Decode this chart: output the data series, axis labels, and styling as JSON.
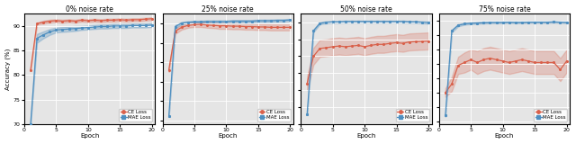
{
  "panels": [
    {
      "title": "0% noise rate",
      "ylim": [
        70,
        92.5
      ],
      "yticks": [
        70,
        75,
        80,
        85,
        90
      ],
      "ce_mean": [
        81,
        90.5,
        90.8,
        91.0,
        91.1,
        91.0,
        91.1,
        91.0,
        91.2,
        91.1,
        91.2,
        91.1,
        91.2,
        91.2,
        91.3,
        91.2,
        91.3,
        91.3,
        91.4,
        91.5
      ],
      "ce_std": [
        0.2,
        0.2,
        0.3,
        0.3,
        0.3,
        0.3,
        0.3,
        0.3,
        0.3,
        0.3,
        0.3,
        0.3,
        0.3,
        0.3,
        0.3,
        0.3,
        0.3,
        0.3,
        0.3,
        0.3
      ],
      "mae_mean": [
        70,
        87.5,
        88.2,
        88.8,
        89.2,
        89.3,
        89.4,
        89.5,
        89.6,
        89.7,
        89.8,
        89.9,
        89.9,
        90.0,
        90.0,
        90.0,
        90.1,
        90.1,
        90.1,
        90.2
      ],
      "mae_std": [
        0.3,
        0.9,
        0.7,
        0.6,
        0.5,
        0.5,
        0.5,
        0.5,
        0.4,
        0.4,
        0.4,
        0.4,
        0.4,
        0.4,
        0.4,
        0.4,
        0.4,
        0.4,
        0.4,
        0.4
      ]
    },
    {
      "title": "25% noise rate",
      "ylim": [
        64,
        92.5
      ],
      "yticks": [
        65,
        70,
        75,
        80,
        85,
        90
      ],
      "ce_mean": [
        78,
        88.0,
        89.0,
        89.5,
        89.7,
        89.8,
        89.6,
        89.5,
        89.4,
        89.4,
        89.3,
        89.3,
        89.2,
        89.2,
        89.1,
        89.1,
        89.0,
        89.0,
        89.0,
        89.0
      ],
      "ce_std": [
        0.5,
        0.7,
        0.6,
        0.6,
        0.6,
        0.7,
        0.7,
        0.7,
        0.8,
        0.8,
        0.8,
        0.8,
        0.8,
        0.8,
        0.8,
        0.8,
        0.8,
        0.8,
        0.8,
        0.8
      ],
      "mae_mean": [
        66,
        89.2,
        90.1,
        90.3,
        90.4,
        90.4,
        90.5,
        90.5,
        90.5,
        90.5,
        90.6,
        90.6,
        90.6,
        90.6,
        90.7,
        90.7,
        90.7,
        90.8,
        90.8,
        90.9
      ],
      "mae_std": [
        0.2,
        0.4,
        0.3,
        0.3,
        0.3,
        0.3,
        0.3,
        0.3,
        0.3,
        0.3,
        0.3,
        0.3,
        0.3,
        0.3,
        0.3,
        0.3,
        0.3,
        0.3,
        0.3,
        0.3
      ]
    },
    {
      "title": "50% noise rate",
      "ylim": [
        60,
        92.5
      ],
      "yticks": [
        60,
        65,
        70,
        75,
        80,
        85,
        90
      ],
      "ce_mean": [
        72,
        80.0,
        82.3,
        82.5,
        82.8,
        83.0,
        82.8,
        83.0,
        83.2,
        82.8,
        83.2,
        83.5,
        83.5,
        83.8,
        84.0,
        83.8,
        84.2,
        84.3,
        84.4,
        84.5
      ],
      "ce_std": [
        2.0,
        2.5,
        2.5,
        2.5,
        2.5,
        2.5,
        2.5,
        2.5,
        2.5,
        2.5,
        2.5,
        2.5,
        2.5,
        2.5,
        2.5,
        2.5,
        2.5,
        2.5,
        2.5,
        2.5
      ],
      "mae_mean": [
        63,
        87.5,
        89.7,
        90.0,
        90.1,
        90.1,
        90.2,
        90.2,
        90.2,
        90.2,
        90.2,
        90.2,
        90.2,
        90.2,
        90.2,
        90.2,
        90.1,
        90.1,
        90.0,
        89.9
      ],
      "mae_std": [
        0.3,
        0.4,
        0.3,
        0.3,
        0.3,
        0.3,
        0.3,
        0.3,
        0.3,
        0.3,
        0.3,
        0.3,
        0.3,
        0.3,
        0.3,
        0.3,
        0.3,
        0.3,
        0.3,
        0.3
      ]
    },
    {
      "title": "75% noise rate",
      "ylim": [
        54,
        92.5
      ],
      "yticks": [
        55,
        60,
        65,
        70,
        75,
        80,
        85,
        90
      ],
      "ce_mean": [
        65,
        68.0,
        74.5,
        75.5,
        76.5,
        75.5,
        76.5,
        77.0,
        76.5,
        76.0,
        75.5,
        76.0,
        76.5,
        76.0,
        75.5,
        75.5,
        75.5,
        75.5,
        73.0,
        76.0
      ],
      "ce_std": [
        1.5,
        2.5,
        3.0,
        3.5,
        3.5,
        4.0,
        4.0,
        4.0,
        4.0,
        4.0,
        4.0,
        4.0,
        4.0,
        4.0,
        4.0,
        4.0,
        4.0,
        4.0,
        4.0,
        4.0
      ],
      "mae_mean": [
        57,
        86.5,
        88.5,
        89.0,
        89.2,
        89.3,
        89.4,
        89.5,
        89.5,
        89.5,
        89.6,
        89.5,
        89.5,
        89.6,
        89.6,
        89.6,
        89.6,
        89.7,
        89.6,
        89.5
      ],
      "mae_std": [
        0.4,
        0.5,
        0.4,
        0.3,
        0.3,
        0.3,
        0.3,
        0.3,
        0.3,
        0.3,
        0.3,
        0.3,
        0.3,
        0.3,
        0.3,
        0.3,
        0.3,
        0.3,
        0.3,
        0.3
      ]
    }
  ],
  "ce_color": "#d9604a",
  "mae_color": "#4f8fc0",
  "ce_fill_alpha": 0.25,
  "mae_fill_alpha": 0.3,
  "xlabel": "Epoch",
  "ylabel": "Accuracy (%)",
  "bg_color": "#e5e5e5",
  "grid_color": "white"
}
